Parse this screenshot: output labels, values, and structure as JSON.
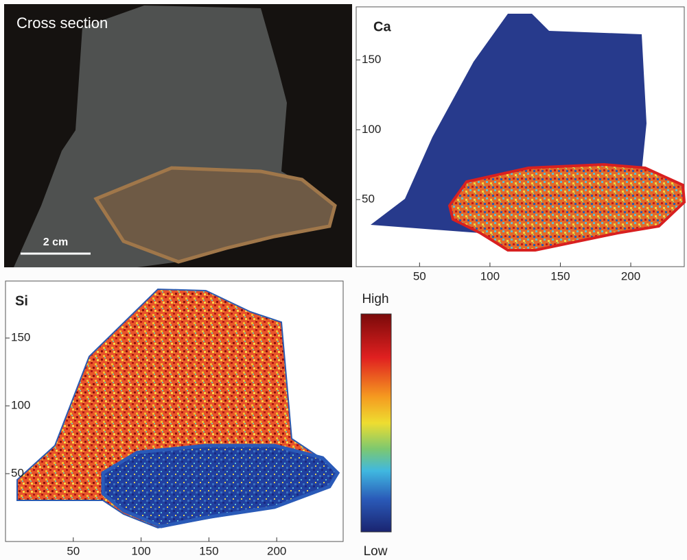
{
  "photo": {
    "label": "Cross section",
    "scale_bar": "2 cm"
  },
  "ca_map": {
    "label": "Ca",
    "xlim": [
      5,
      238
    ],
    "ylim": [
      2,
      188
    ],
    "xticks": [
      50,
      100,
      150,
      200
    ],
    "yticks": [
      50,
      100,
      150
    ]
  },
  "si_map": {
    "label": "Si",
    "xlim": [
      0,
      249
    ],
    "ylim": [
      0,
      192
    ],
    "xticks": [
      50,
      100,
      150,
      200
    ],
    "yticks": [
      50,
      100,
      150
    ]
  },
  "colorbar": {
    "high": "High",
    "low": "Low"
  }
}
